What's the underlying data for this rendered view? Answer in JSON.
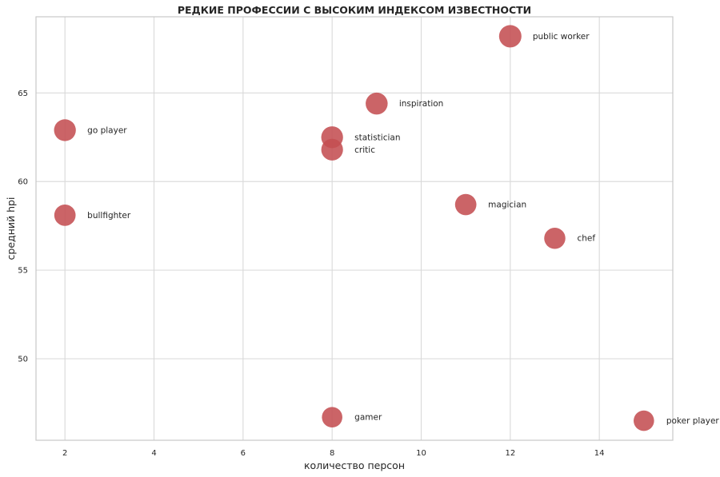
{
  "chart_data": {
    "type": "scatter",
    "title": "РЕДКИЕ ПРОФЕССИИ С ВЫСОКИМ ИНДЕКСОМ ИЗВЕСТНОСТИ",
    "xlabel": "количество персон",
    "ylabel": "средний hpi",
    "xlim": [
      1.35,
      15.65
    ],
    "ylim": [
      45.4,
      69.3
    ],
    "xticks": [
      2,
      4,
      6,
      8,
      10,
      12,
      14
    ],
    "yticks": [
      50,
      55,
      60,
      65
    ],
    "grid": true,
    "marker_color": "#c44e52",
    "points": [
      {
        "label": "public worker",
        "x": 12,
        "y": 68.2,
        "size": 1.0
      },
      {
        "label": "inspiration",
        "x": 9,
        "y": 64.4,
        "size": 0.95
      },
      {
        "label": "go player",
        "x": 2,
        "y": 62.9,
        "size": 0.93
      },
      {
        "label": "statistician",
        "x": 8,
        "y": 62.5,
        "size": 0.93
      },
      {
        "label": "critic",
        "x": 8,
        "y": 61.8,
        "size": 0.92
      },
      {
        "label": "magician",
        "x": 11,
        "y": 58.7,
        "size": 0.87
      },
      {
        "label": "bullfighter",
        "x": 2,
        "y": 58.1,
        "size": 0.87
      },
      {
        "label": "chef",
        "x": 13,
        "y": 56.8,
        "size": 0.85
      },
      {
        "label": "gamer",
        "x": 8,
        "y": 46.7,
        "size": 0.76
      },
      {
        "label": "poker player",
        "x": 15,
        "y": 46.5,
        "size": 0.76
      }
    ]
  }
}
